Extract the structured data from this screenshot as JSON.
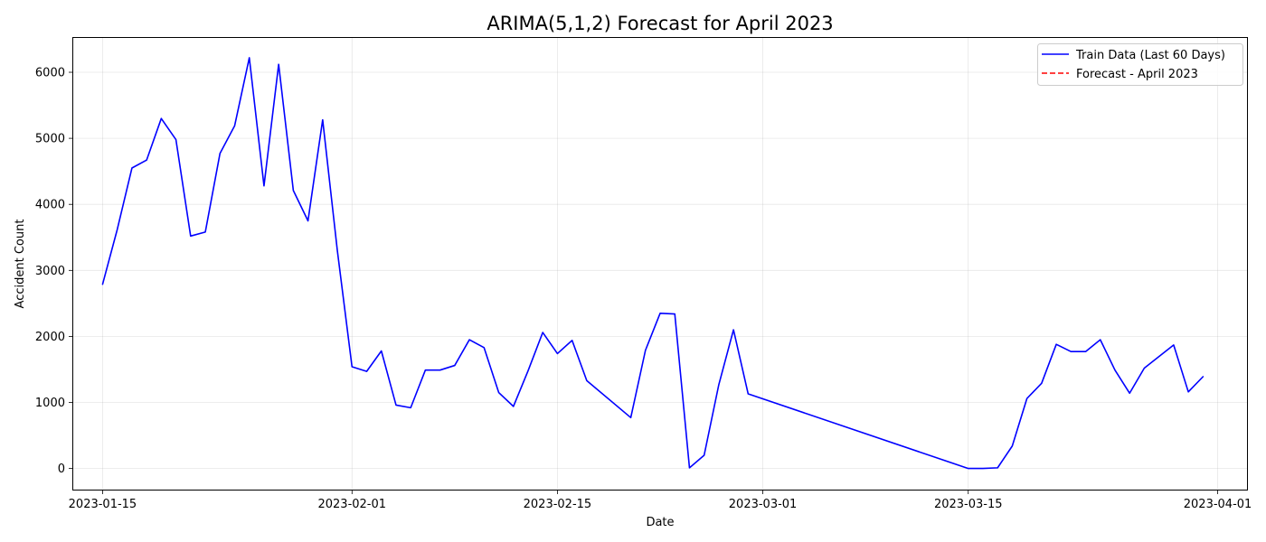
{
  "chart_data": {
    "type": "line",
    "title": "ARIMA(5,1,2) Forecast for April 2023",
    "xlabel": "Date",
    "ylabel": "Accident Count",
    "xlim": [
      "2023-01-13",
      "2023-04-03"
    ],
    "ylim": [
      -320,
      6520
    ],
    "x_ticks": [
      "2023-01-15",
      "2023-02-01",
      "2023-02-15",
      "2023-03-01",
      "2023-03-15",
      "2023-04-01"
    ],
    "y_ticks": [
      0,
      1000,
      2000,
      3000,
      4000,
      5000,
      6000
    ],
    "grid": true,
    "legend_position": "top-right",
    "series": [
      {
        "name": "Train Data (Last 60 Days)",
        "color": "#0000ff",
        "style": "solid",
        "x": [
          "2023-01-15",
          "2023-01-16",
          "2023-01-17",
          "2023-01-18",
          "2023-01-19",
          "2023-01-20",
          "2023-01-21",
          "2023-01-22",
          "2023-01-23",
          "2023-01-24",
          "2023-01-25",
          "2023-01-26",
          "2023-01-27",
          "2023-01-28",
          "2023-01-29",
          "2023-01-30",
          "2023-01-31",
          "2023-02-01",
          "2023-02-02",
          "2023-02-03",
          "2023-02-04",
          "2023-02-05",
          "2023-02-06",
          "2023-02-07",
          "2023-02-08",
          "2023-02-09",
          "2023-02-10",
          "2023-02-11",
          "2023-02-12",
          "2023-02-13",
          "2023-02-14",
          "2023-02-15",
          "2023-02-16",
          "2023-02-17",
          "2023-02-20",
          "2023-02-21",
          "2023-02-22",
          "2023-02-23",
          "2023-02-24",
          "2023-02-25",
          "2023-02-26",
          "2023-02-27",
          "2023-02-28",
          "2023-03-15",
          "2023-03-16",
          "2023-03-17",
          "2023-03-18",
          "2023-03-19",
          "2023-03-20",
          "2023-03-21",
          "2023-03-22",
          "2023-03-23",
          "2023-03-24",
          "2023-03-25",
          "2023-03-26",
          "2023-03-27",
          "2023-03-29",
          "2023-03-30",
          "2023-03-31"
        ],
        "values": [
          2790,
          3620,
          4550,
          4670,
          5300,
          4980,
          3520,
          3580,
          4770,
          5190,
          6220,
          4280,
          6120,
          4210,
          3750,
          5280,
          3300,
          1540,
          1470,
          1780,
          960,
          920,
          1490,
          1490,
          1560,
          1950,
          1830,
          1150,
          940,
          1480,
          2060,
          1740,
          1940,
          1330,
          770,
          1790,
          2350,
          2340,
          10,
          200,
          1270,
          2100,
          1130,
          0,
          0,
          10,
          340,
          1060,
          1290,
          1880,
          1770,
          1770,
          1950,
          1490,
          1140,
          1520,
          1870,
          1160,
          1390
        ]
      },
      {
        "name": "Forecast - April 2023",
        "color": "#ff0000",
        "style": "dashed",
        "x": [],
        "values": []
      }
    ]
  }
}
